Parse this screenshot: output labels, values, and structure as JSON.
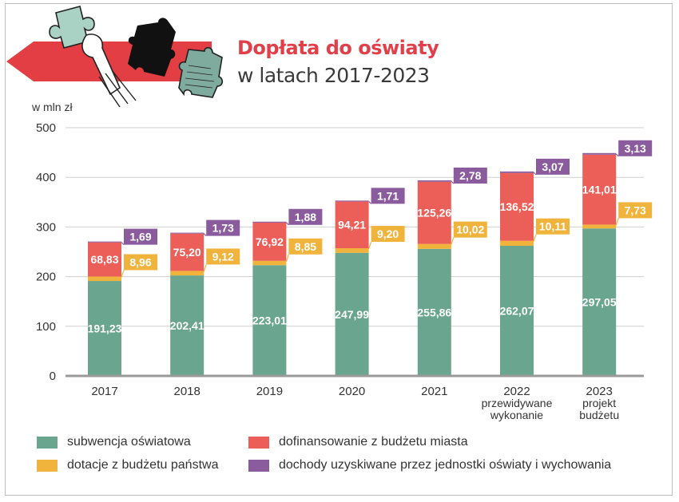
{
  "title": "Dopłata do oświaty",
  "subtitle": "w latach 2017-2023",
  "colors": {
    "subwencja": "#6aa58f",
    "dotacje": "#f0b33b",
    "dofinansowanie": "#ec5f59",
    "dochody": "#8a5c9e",
    "accent": "#e0404a"
  },
  "chart_data": {
    "type": "bar",
    "stacked": true,
    "ylabel": "w mln zł",
    "ylim": [
      0,
      500
    ],
    "yticks": [
      "0",
      "100",
      "200",
      "300",
      "400",
      "500"
    ],
    "grid": true,
    "categories": [
      [
        "2017"
      ],
      [
        "2018"
      ],
      [
        "2019"
      ],
      [
        "2020"
      ],
      [
        "2021"
      ],
      [
        "2022",
        "przewidywane",
        "wykonanie"
      ],
      [
        "2023",
        "projekt",
        "budżetu"
      ]
    ],
    "series": [
      {
        "name": "subwencja oświatowa",
        "color": "#6aa58f",
        "values": [
          191.23,
          202.41,
          223.01,
          247.99,
          255.86,
          262.07,
          297.05
        ],
        "labels": [
          "191,23",
          "202,41",
          "223,01",
          "247,99",
          "255,86",
          "262,07",
          "297,05"
        ]
      },
      {
        "name": "dotacje z budżetu państwa",
        "color": "#f0b33b",
        "values": [
          8.96,
          9.12,
          8.85,
          9.2,
          10.02,
          10.11,
          7.73
        ],
        "labels": [
          "8,96",
          "9,12",
          "8,85",
          "9,20",
          "10,02",
          "10,11",
          "7,73"
        ]
      },
      {
        "name": "dofinansowanie z budżetu miasta",
        "color": "#ec5f59",
        "values": [
          68.83,
          75.2,
          76.92,
          94.21,
          125.26,
          136.52,
          141.01
        ],
        "labels": [
          "68,83",
          "75,20",
          "76,92",
          "94,21",
          "125,26",
          "136,52",
          "141,01"
        ]
      },
      {
        "name": "dochody uzyskiwane przez jednostki oświaty i wychowania",
        "color": "#8a5c9e",
        "values": [
          1.69,
          1.73,
          1.88,
          1.71,
          2.78,
          3.07,
          3.13
        ],
        "labels": [
          "1,69",
          "1,73",
          "1,88",
          "1,71",
          "2,78",
          "3,07",
          "3,13"
        ]
      }
    ],
    "legend": [
      {
        "name": "subwencja oświatowa",
        "color": "#6aa58f"
      },
      {
        "name": "dofinansowanie z budżetu miasta",
        "color": "#ec5f59"
      },
      {
        "name": "dotacje z budżetu państwa",
        "color": "#f0b33b"
      },
      {
        "name": "dochody uzyskiwane przez jednostki oświaty i wychowania",
        "color": "#8a5c9e"
      }
    ]
  }
}
